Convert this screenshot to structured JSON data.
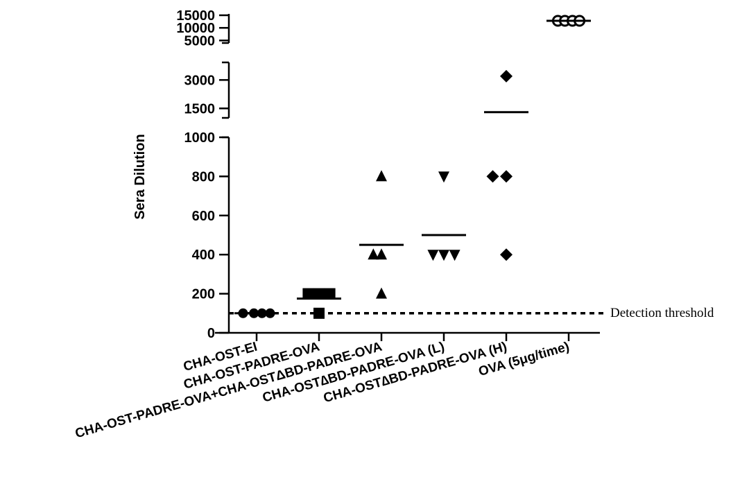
{
  "chart_data": {
    "type": "scatter",
    "title": "",
    "ylabel": "Sera Dilution",
    "xlabel": "",
    "categories": [
      "CHA-OST-EI",
      "CHA-OST-PADRE-OVA",
      "CHA-OST-PADRE-OVA+CHA-OSTΔBD-PADRE-OVA",
      "CHA-OST∆BD-PADRE-OVA (L)",
      "CHA-OST∆BD-PADRE-OVA (H)",
      "OVA (5μg/time)"
    ],
    "y_axis_segments": [
      {
        "range": [
          0,
          1000
        ],
        "ticks": [
          0,
          200,
          400,
          600,
          800,
          1000
        ],
        "tick_labels": [
          "0",
          "200",
          "400",
          "600",
          "800",
          "1000"
        ]
      },
      {
        "range": [
          1000,
          4000
        ],
        "ticks": [
          1500,
          3000
        ],
        "tick_labels": [
          "1500",
          "3000"
        ]
      },
      {
        "range": [
          4000,
          16000
        ],
        "ticks": [
          5000,
          10000,
          15000
        ],
        "tick_labels": [
          "5000",
          "10000",
          "15000"
        ]
      }
    ],
    "y_axis_break": true,
    "series": [
      {
        "marker": "circle",
        "points": [
          {
            "x": -0.25,
            "y": 100
          },
          {
            "x": -0.05,
            "y": 100
          },
          {
            "x": 0.1,
            "y": 100
          },
          {
            "x": 0.25,
            "y": 100
          }
        ],
        "mean": 100
      },
      {
        "marker": "square",
        "points": [
          {
            "x": -0.2,
            "y": 200
          },
          {
            "x": 0.0,
            "y": 200
          },
          {
            "x": 0.2,
            "y": 200
          },
          {
            "x": 0.0,
            "y": 100
          }
        ],
        "mean": 175
      },
      {
        "marker": "triangle-up",
        "points": [
          {
            "x": -0.15,
            "y": 400
          },
          {
            "x": 0.0,
            "y": 400
          },
          {
            "x": 0.0,
            "y": 800
          },
          {
            "x": 0.0,
            "y": 200
          }
        ],
        "mean": 450
      },
      {
        "marker": "triangle-down",
        "points": [
          {
            "x": -0.2,
            "y": 400
          },
          {
            "x": 0.0,
            "y": 400
          },
          {
            "x": 0.2,
            "y": 400
          },
          {
            "x": 0.0,
            "y": 800
          }
        ],
        "mean": 500
      },
      {
        "marker": "diamond",
        "points": [
          {
            "x": 0.0,
            "y": 3200
          },
          {
            "x": -0.25,
            "y": 800
          },
          {
            "x": 0.0,
            "y": 800
          },
          {
            "x": 0.0,
            "y": 400
          }
        ],
        "mean": 1300
      },
      {
        "marker": "circle-open",
        "points": [
          {
            "x": -0.2,
            "y": 12800
          },
          {
            "x": -0.07,
            "y": 12800
          },
          {
            "x": 0.07,
            "y": 12800
          },
          {
            "x": 0.2,
            "y": 12800
          }
        ],
        "mean": 12800
      }
    ],
    "reference_line": {
      "y": 100,
      "style": "dashed",
      "label": "Detection threshold"
    },
    "grid": false,
    "legend": "none"
  }
}
